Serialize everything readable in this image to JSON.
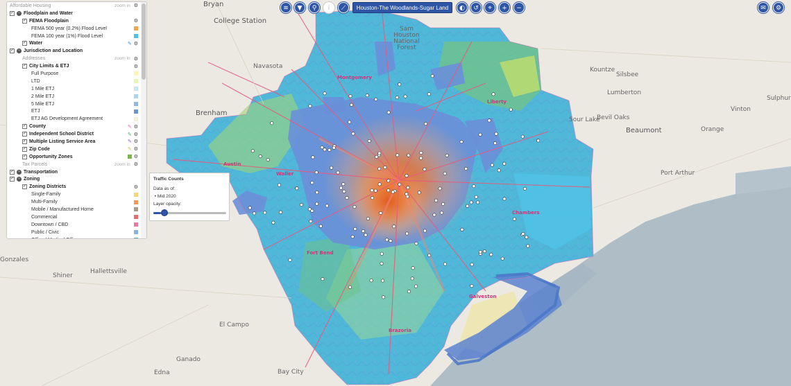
{
  "toolbar": {
    "region_label": "Houston-The Woodlands-Sugar Land",
    "buttons": [
      {
        "name": "layers-icon",
        "glyph": "≋"
      },
      {
        "name": "filter-icon",
        "glyph": "▼"
      },
      {
        "name": "search-icon",
        "glyph": "⚲"
      },
      {
        "name": "info-icon",
        "glyph": "i"
      },
      {
        "name": "measure-icon",
        "glyph": "⟋"
      }
    ],
    "right_buttons": [
      {
        "name": "dark-mode-icon",
        "glyph": "◐"
      },
      {
        "name": "reset-icon",
        "glyph": "↺"
      },
      {
        "name": "locate-icon",
        "glyph": "⌖"
      },
      {
        "name": "zoom-in-icon",
        "glyph": "+"
      },
      {
        "name": "zoom-out-icon",
        "glyph": "−"
      }
    ],
    "corner_buttons": [
      {
        "name": "chat-icon",
        "glyph": "✉"
      },
      {
        "name": "settings-icon",
        "glyph": "⚙"
      }
    ]
  },
  "layer_panel": {
    "zoom_in_label": "zoom in",
    "rows": [
      {
        "id": "affordable",
        "type": "muted",
        "label": "Affordable Housing",
        "indent": 0,
        "zoom": true,
        "gear": true
      },
      {
        "id": "floodplain_water",
        "type": "group",
        "label": "Floodplain and Water",
        "indent": 0,
        "checked": true
      },
      {
        "id": "fema",
        "type": "layer",
        "label": "FEMA Floodplain",
        "indent": 1,
        "checked": true,
        "gear": true
      },
      {
        "id": "fema500",
        "type": "legend",
        "label": "FEMA 500 year (0.2%) Flood Level",
        "indent": 2,
        "color": "#f5a64a"
      },
      {
        "id": "fema100",
        "type": "legend",
        "label": "FEMA 100 year (1%) Flood Level",
        "indent": 2,
        "color": "#4fc3e6"
      },
      {
        "id": "water",
        "type": "layer",
        "label": "Water",
        "indent": 1,
        "checked": true,
        "pen": "#2f8de0",
        "gear": true
      },
      {
        "id": "jurisdiction",
        "type": "group",
        "label": "Jurisdiction and Location",
        "indent": 0,
        "checked": true
      },
      {
        "id": "addresses",
        "type": "muted",
        "label": "Addresses",
        "indent": 1,
        "zoom": true,
        "gear": true
      },
      {
        "id": "citylimits",
        "type": "layer",
        "label": "City Limits & ETJ",
        "indent": 1,
        "checked": true,
        "gear": true
      },
      {
        "id": "fullpurpose",
        "type": "legend",
        "label": "Full Purpose",
        "indent": 2,
        "color": "#fff5b0"
      },
      {
        "id": "ltd",
        "type": "legend",
        "label": "LTD",
        "indent": 2,
        "color": "#e6f5b0"
      },
      {
        "id": "etj1",
        "type": "legend",
        "label": "1 Mile ETJ",
        "indent": 2,
        "color": "#c5e8f5"
      },
      {
        "id": "etj2",
        "type": "legend",
        "label": "2 Mile ETJ",
        "indent": 2,
        "color": "#a8d4f0"
      },
      {
        "id": "etj5",
        "type": "legend",
        "label": "5 Mile ETJ",
        "indent": 2,
        "color": "#8fb8e8"
      },
      {
        "id": "etj",
        "type": "legend",
        "label": "ETJ",
        "indent": 2,
        "color": "#6a93d8"
      },
      {
        "id": "etjag",
        "type": "legend",
        "label": "ETJ AG Development Agreement",
        "indent": 2,
        "color": "#f4f0d8"
      },
      {
        "id": "county",
        "type": "layer",
        "label": "County",
        "indent": 1,
        "checked": true,
        "pen": "#e26ab0",
        "gear": true
      },
      {
        "id": "isd",
        "type": "layer",
        "label": "Independent School District",
        "indent": 1,
        "checked": true,
        "pen": "#3fae5a",
        "gear": true
      },
      {
        "id": "mls",
        "type": "layer",
        "label": "Multiple Listing Service Area",
        "indent": 1,
        "checked": true,
        "pen": "#8a5ad8",
        "gear": true
      },
      {
        "id": "zip",
        "type": "layer",
        "label": "Zip Code",
        "indent": 1,
        "checked": true,
        "pen": "#d8b84a",
        "gear": true
      },
      {
        "id": "opportunity",
        "type": "layer",
        "label": "Opportunity Zones",
        "indent": 1,
        "checked": true,
        "swatch": "#7ab648",
        "gear": true
      },
      {
        "id": "taxparcels",
        "type": "muted",
        "label": "Tax Parcels",
        "indent": 1,
        "zoom": true,
        "gear": true
      },
      {
        "id": "transportation",
        "type": "group",
        "label": "Transportation",
        "indent": 0,
        "checked": true
      },
      {
        "id": "zoning",
        "type": "group",
        "label": "Zoning",
        "indent": 0,
        "checked": true
      },
      {
        "id": "zoningdistricts",
        "type": "layer",
        "label": "Zoning Districts",
        "indent": 1,
        "checked": true,
        "gear": true
      },
      {
        "id": "singlefamily",
        "type": "legend",
        "label": "Single-Family",
        "indent": 2,
        "color": "#f7d67a"
      },
      {
        "id": "multifamily",
        "type": "legend",
        "label": "Multi-Family",
        "indent": 2,
        "color": "#f29a5a"
      },
      {
        "id": "mobile",
        "type": "legend",
        "label": "Mobile / Manufactured Home",
        "indent": 2,
        "color": "#a89a8a"
      },
      {
        "id": "commercial",
        "type": "legend",
        "label": "Commercial",
        "indent": 2,
        "color": "#e86a6a"
      },
      {
        "id": "downtown",
        "type": "legend",
        "label": "Downtown / CBD",
        "indent": 2,
        "color": "#e87aa8"
      },
      {
        "id": "public",
        "type": "legend",
        "label": "Public / Civic",
        "indent": 2,
        "color": "#8ab0e8"
      },
      {
        "id": "office",
        "type": "legend",
        "label": "Office / Medical Office",
        "indent": 2,
        "color": "#5ab8b0"
      }
    ]
  },
  "traffic_popup": {
    "title": "Traffic Counts",
    "data_as_of_label": "Data as of:",
    "date_value": "Mid 2020",
    "opacity_label": "Layer opacity:",
    "opacity_value": 0.1
  },
  "map": {
    "places": [
      {
        "name": "Bryan",
        "cls": "city"
      },
      {
        "name": "College Station",
        "cls": "city"
      },
      {
        "name": "Sam Houston National Forest",
        "cls": ""
      },
      {
        "name": "Navasota",
        "cls": ""
      },
      {
        "name": "Brenham",
        "cls": "city"
      },
      {
        "name": "Kountze",
        "cls": ""
      },
      {
        "name": "Silsbee",
        "cls": ""
      },
      {
        "name": "Lumberton",
        "cls": ""
      },
      {
        "name": "Sour Lake",
        "cls": ""
      },
      {
        "name": "Bevil Oaks",
        "cls": ""
      },
      {
        "name": "Beaumont",
        "cls": "city"
      },
      {
        "name": "Orange",
        "cls": ""
      },
      {
        "name": "Vinton",
        "cls": ""
      },
      {
        "name": "Sulphur",
        "cls": ""
      },
      {
        "name": "Port Arthur",
        "cls": ""
      },
      {
        "name": "Shiner",
        "cls": ""
      },
      {
        "name": "Hallettsville",
        "cls": ""
      },
      {
        "name": "El Campo",
        "cls": ""
      },
      {
        "name": "Ganado",
        "cls": ""
      },
      {
        "name": "Edna",
        "cls": ""
      },
      {
        "name": "Bay City",
        "cls": ""
      },
      {
        "name": "Gonzales",
        "cls": ""
      }
    ],
    "hot_labels": [
      "Montgomery",
      "Liberty",
      "Austin",
      "Waller",
      "Chambers",
      "Fort Bend",
      "Galveston",
      "Brazoria"
    ]
  }
}
